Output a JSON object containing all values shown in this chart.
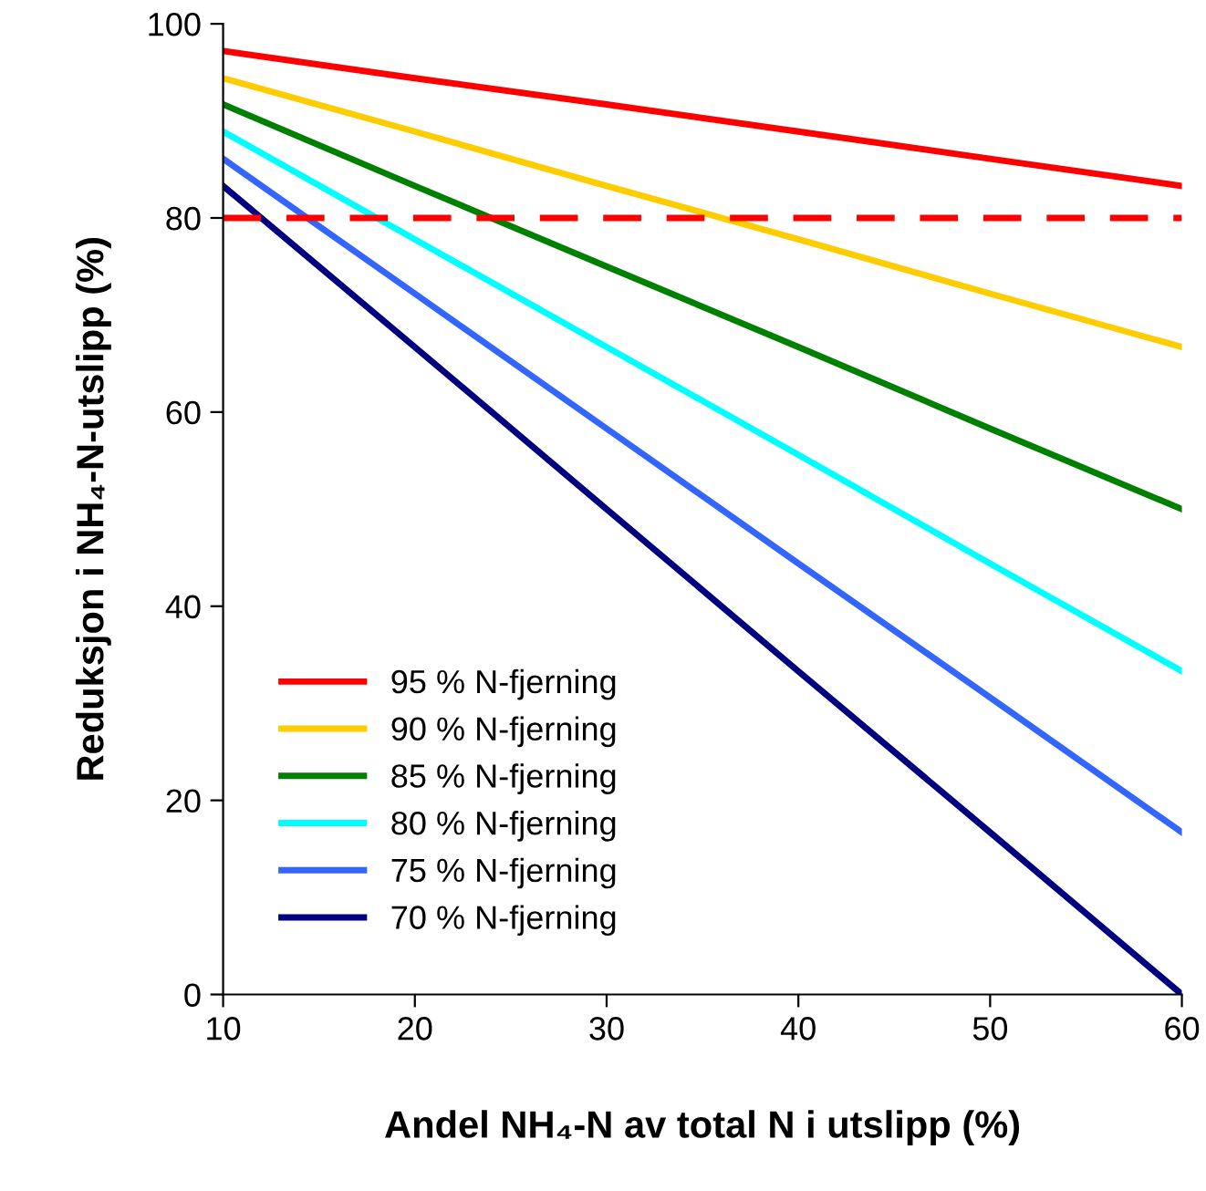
{
  "chart_data": {
    "type": "line",
    "xlabel": "Andel NH₄-N av total N i utslipp (%)",
    "ylabel": "Reduksjon i NH₄-N-utslipp (%)",
    "x": [
      10,
      20,
      30,
      40,
      50,
      60
    ],
    "series": [
      {
        "name": "95 % N-fjerning",
        "color": "#ff0000",
        "values": [
          97.2,
          94.4,
          91.7,
          88.9,
          86.1,
          83.3
        ]
      },
      {
        "name": "90 % N-fjerning",
        "color": "#ffcc00",
        "values": [
          94.4,
          88.9,
          83.3,
          77.8,
          72.2,
          66.7
        ]
      },
      {
        "name": "85 % N-fjerning",
        "color": "#008000",
        "values": [
          91.7,
          83.3,
          75.0,
          66.7,
          58.3,
          50.0
        ]
      },
      {
        "name": "80 % N-fjerning",
        "color": "#00ffff",
        "values": [
          88.9,
          77.8,
          66.7,
          55.6,
          44.4,
          33.3
        ]
      },
      {
        "name": "75 % N-fjerning",
        "color": "#3366ff",
        "values": [
          86.1,
          72.2,
          58.3,
          44.4,
          30.6,
          16.7
        ]
      },
      {
        "name": "70 % N-fjerning",
        "color": "#000080",
        "values": [
          83.3,
          66.7,
          50.0,
          33.3,
          16.7,
          0
        ]
      }
    ],
    "xlim": [
      10,
      60
    ],
    "xticks": [
      10,
      20,
      30,
      40,
      50,
      60
    ],
    "ylim": [
      0,
      100
    ],
    "yticks": [
      0,
      20,
      40,
      60,
      80,
      100
    ],
    "ref_lines": [
      {
        "axis": "y",
        "value": 80,
        "color": "#ff0000",
        "line_style": "dashed"
      }
    ],
    "legend": "bottom left",
    "grid": false,
    "marker": "none",
    "line_style": "solid"
  }
}
